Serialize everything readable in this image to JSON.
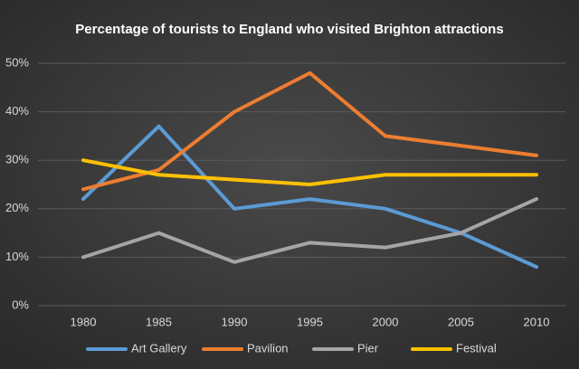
{
  "chart_data": {
    "type": "line",
    "title": "Percentage of tourists to England who visited Brighton attractions",
    "categories": [
      "1980",
      "1985",
      "1990",
      "1995",
      "2000",
      "2005",
      "2010"
    ],
    "series": [
      {
        "name": "Art Gallery",
        "color": "#5b9bd5",
        "values": [
          22,
          37,
          20,
          22,
          20,
          15,
          8
        ]
      },
      {
        "name": "Pavilion",
        "color": "#ed7d31",
        "values": [
          24,
          28,
          40,
          48,
          35,
          33,
          31
        ]
      },
      {
        "name": "Pier",
        "color": "#a5a5a5",
        "values": [
          10,
          15,
          9,
          13,
          12,
          15,
          22
        ]
      },
      {
        "name": "Festival",
        "color": "#ffc000",
        "values": [
          30,
          27,
          26,
          25,
          27,
          27,
          27
        ]
      }
    ],
    "ylim": [
      0,
      50
    ],
    "yticks": [
      {
        "value": 0,
        "label": "0%"
      },
      {
        "value": 10,
        "label": "10%"
      },
      {
        "value": 20,
        "label": "20%"
      },
      {
        "value": 30,
        "label": "30%"
      },
      {
        "value": 40,
        "label": "40%"
      },
      {
        "value": 50,
        "label": "50%"
      }
    ],
    "grid": true,
    "legend": "bottom"
  }
}
